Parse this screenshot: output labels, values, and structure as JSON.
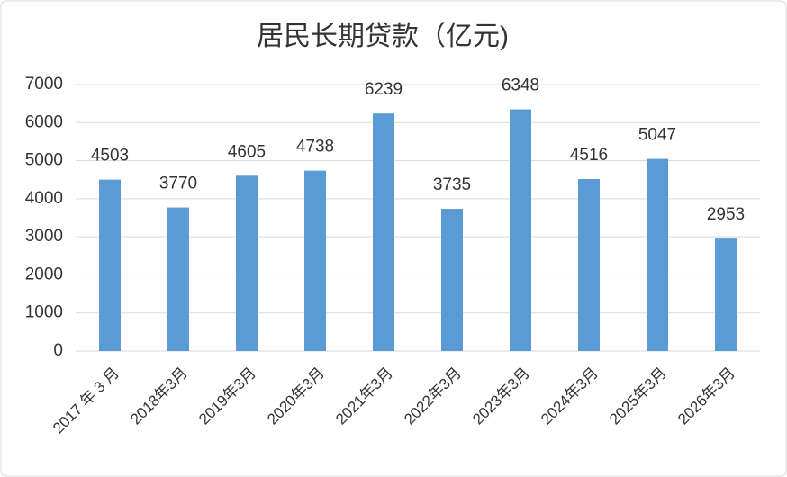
{
  "chart_data": {
    "type": "bar",
    "title": "居民长期贷款（亿元)",
    "categories": [
      "2017 年 3 月",
      "2018年3月",
      "2019年3月",
      "2020年3月",
      "2021年3月",
      "2022年3月",
      "2023年3月",
      "2024年3月",
      "2025年3月",
      "2026年3月"
    ],
    "values": [
      4503,
      3770,
      4605,
      4738,
      6239,
      3735,
      6348,
      4516,
      5047,
      2953
    ],
    "color": "#5b9bd5",
    "ylim": [
      0,
      7000
    ],
    "yticks": [
      0,
      1000,
      2000,
      3000,
      4000,
      5000,
      6000,
      7000
    ],
    "grid": true
  }
}
